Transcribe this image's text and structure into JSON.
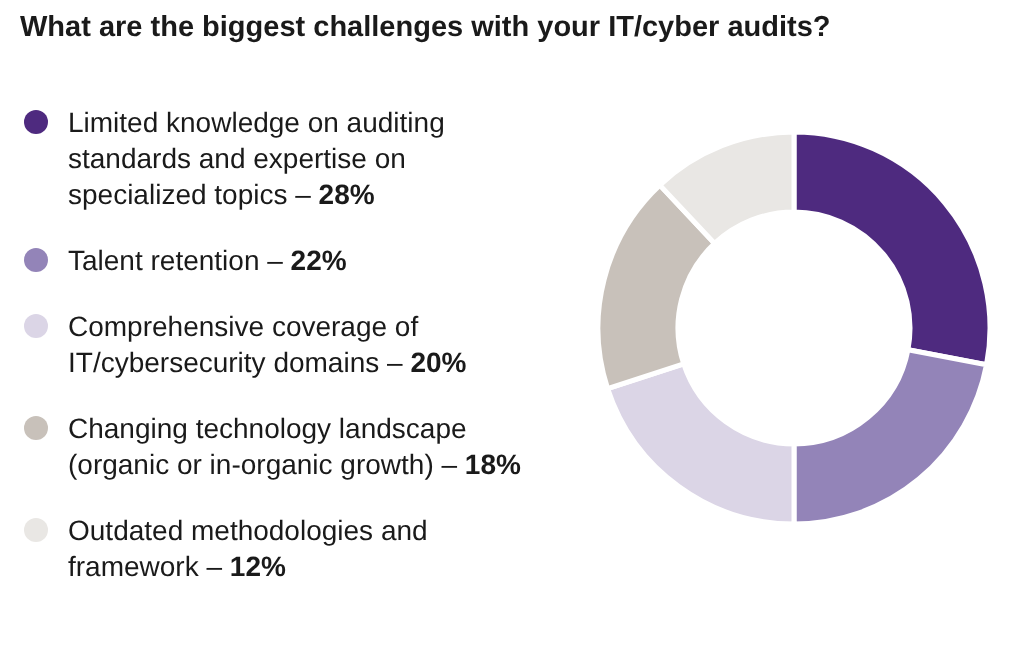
{
  "chart_data": {
    "type": "donut",
    "title": "What are the biggest challenges with your IT/cyber audits?",
    "categories": [
      "Limited knowledge on auditing standards and expertise on specialized topics –",
      "Talent retention –",
      "Comprehensive coverage of IT/cybersecurity domains –",
      "Changing technology landscape (organic or in-organic growth) –",
      "Outdated methodologies and framework –"
    ],
    "values": [
      28,
      22,
      20,
      18,
      12
    ],
    "value_labels": [
      "28%",
      "22%",
      "20%",
      "18%",
      "12%"
    ],
    "colors": [
      "#4e2a7f",
      "#9384b8",
      "#dbd5e6",
      "#c8c1ba",
      "#e9e7e4"
    ],
    "legend": "left"
  }
}
